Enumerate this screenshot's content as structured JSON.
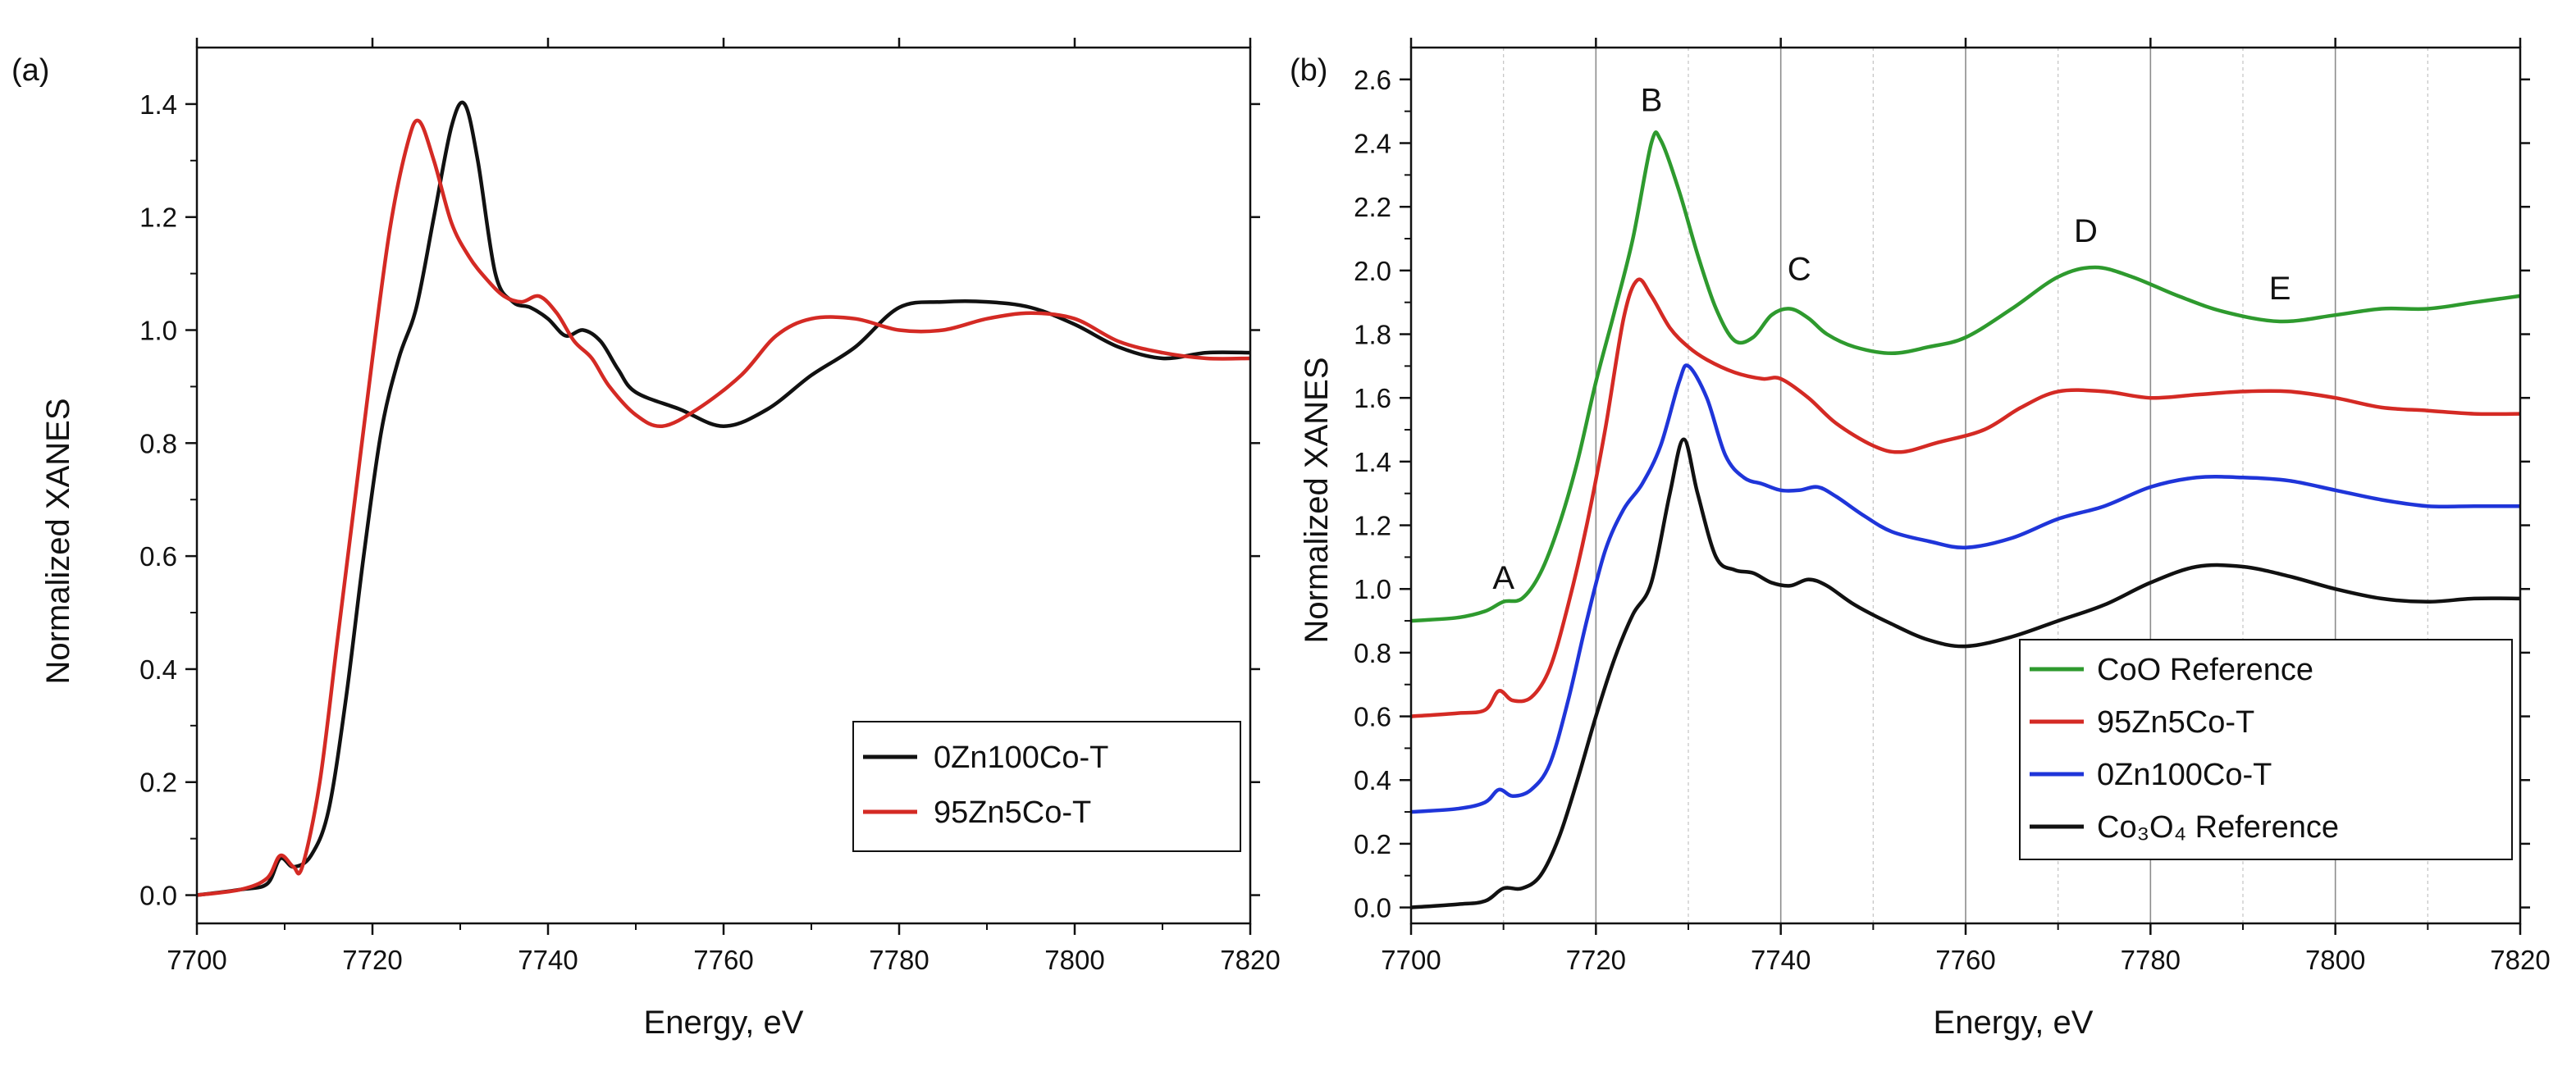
{
  "chart_data": [
    {
      "type": "line",
      "panel_label": "(a)",
      "title": "",
      "xlabel": "Energy, eV",
      "ylabel": "Normalized XANES",
      "xlim": [
        7700,
        7820
      ],
      "ylim": [
        -0.05,
        1.5
      ],
      "x_ticks": [
        7700,
        7720,
        7740,
        7760,
        7780,
        7800,
        7820
      ],
      "y_ticks": [
        0.0,
        0.2,
        0.4,
        0.6,
        0.8,
        1.0,
        1.2,
        1.4
      ],
      "x_tick_labels": [
        "7700",
        "7720",
        "7740",
        "7760",
        "7780",
        "7800",
        "7820"
      ],
      "y_tick_labels": [
        "0.0",
        "0.2",
        "0.4",
        "0.6",
        "0.8",
        "1.0",
        "1.2",
        "1.4"
      ],
      "grid": false,
      "legend_position": "bottom-right",
      "annotations": [],
      "series": [
        {
          "name": "0Zn100Co-T",
          "color": "#111111",
          "points": [
            [
              7700,
              0.0
            ],
            [
              7705,
              0.01
            ],
            [
              7708,
              0.02
            ],
            [
              7709.5,
              0.065
            ],
            [
              7711,
              0.05
            ],
            [
              7713,
              0.07
            ],
            [
              7715,
              0.15
            ],
            [
              7717,
              0.35
            ],
            [
              7719,
              0.6
            ],
            [
              7721,
              0.82
            ],
            [
              7723,
              0.95
            ],
            [
              7725,
              1.04
            ],
            [
              7727,
              1.2
            ],
            [
              7729,
              1.36
            ],
            [
              7730.5,
              1.4
            ],
            [
              7732,
              1.3
            ],
            [
              7734,
              1.1
            ],
            [
              7736,
              1.05
            ],
            [
              7738,
              1.04
            ],
            [
              7740,
              1.02
            ],
            [
              7742,
              0.99
            ],
            [
              7744,
              1.0
            ],
            [
              7746,
              0.98
            ],
            [
              7748,
              0.93
            ],
            [
              7750,
              0.89
            ],
            [
              7755,
              0.86
            ],
            [
              7760,
              0.83
            ],
            [
              7765,
              0.86
            ],
            [
              7770,
              0.92
            ],
            [
              7775,
              0.97
            ],
            [
              7780,
              1.04
            ],
            [
              7785,
              1.05
            ],
            [
              7790,
              1.05
            ],
            [
              7795,
              1.04
            ],
            [
              7800,
              1.01
            ],
            [
              7805,
              0.97
            ],
            [
              7810,
              0.95
            ],
            [
              7815,
              0.96
            ],
            [
              7820,
              0.96
            ]
          ]
        },
        {
          "name": "95Zn5Co-T",
          "color": "#d42a24",
          "points": [
            [
              7700,
              0.0
            ],
            [
              7705,
              0.01
            ],
            [
              7708,
              0.03
            ],
            [
              7709.5,
              0.07
            ],
            [
              7711,
              0.05
            ],
            [
              7712,
              0.05
            ],
            [
              7714,
              0.2
            ],
            [
              7716,
              0.45
            ],
            [
              7718,
              0.7
            ],
            [
              7720,
              0.95
            ],
            [
              7722,
              1.18
            ],
            [
              7724,
              1.33
            ],
            [
              7725.3,
              1.37
            ],
            [
              7727,
              1.3
            ],
            [
              7729,
              1.19
            ],
            [
              7731,
              1.13
            ],
            [
              7733,
              1.09
            ],
            [
              7735,
              1.06
            ],
            [
              7737,
              1.05
            ],
            [
              7739,
              1.06
            ],
            [
              7741,
              1.03
            ],
            [
              7743,
              0.98
            ],
            [
              7745,
              0.95
            ],
            [
              7747,
              0.9
            ],
            [
              7750,
              0.85
            ],
            [
              7753,
              0.83
            ],
            [
              7757,
              0.86
            ],
            [
              7762,
              0.92
            ],
            [
              7766,
              0.99
            ],
            [
              7770,
              1.02
            ],
            [
              7775,
              1.02
            ],
            [
              7780,
              1.0
            ],
            [
              7785,
              1.0
            ],
            [
              7790,
              1.02
            ],
            [
              7795,
              1.03
            ],
            [
              7800,
              1.02
            ],
            [
              7805,
              0.98
            ],
            [
              7810,
              0.96
            ],
            [
              7815,
              0.95
            ],
            [
              7820,
              0.95
            ]
          ]
        }
      ]
    },
    {
      "type": "line",
      "panel_label": "(b)",
      "title": "",
      "xlabel": "Energy, eV",
      "ylabel": "Normalized XANES",
      "xlim": [
        7700,
        7820
      ],
      "ylim": [
        -0.05,
        2.7
      ],
      "x_ticks": [
        7700,
        7720,
        7740,
        7760,
        7780,
        7800,
        7820
      ],
      "y_ticks": [
        0.0,
        0.2,
        0.4,
        0.6,
        0.8,
        1.0,
        1.2,
        1.4,
        1.6,
        1.8,
        2.0,
        2.2,
        2.4,
        2.6
      ],
      "x_tick_labels": [
        "7700",
        "7720",
        "7740",
        "7760",
        "7780",
        "7800",
        "7820"
      ],
      "y_tick_labels": [
        "0.0",
        "0.2",
        "0.4",
        "0.6",
        "0.8",
        "1.0",
        "1.2",
        "1.4",
        "1.6",
        "1.8",
        "2.0",
        "2.2",
        "2.4",
        "2.6"
      ],
      "grid": true,
      "grid_lines_x": [
        7710,
        7720,
        7730,
        7740,
        7750,
        7760,
        7770,
        7780,
        7790,
        7800,
        7810
      ],
      "legend_position": "bottom-right",
      "annotations": [
        {
          "text": "A",
          "x": 7710,
          "y": 1.0
        },
        {
          "text": "B",
          "x": 7726,
          "y": 2.5
        },
        {
          "text": "C",
          "x": 7742,
          "y": 1.97
        },
        {
          "text": "D",
          "x": 7773,
          "y": 2.09
        },
        {
          "text": "E",
          "x": 7794,
          "y": 1.91
        }
      ],
      "series": [
        {
          "name": "CoO Reference",
          "color": "#2e9a2e",
          "points": [
            [
              7700,
              0.9
            ],
            [
              7705,
              0.91
            ],
            [
              7708,
              0.93
            ],
            [
              7710,
              0.96
            ],
            [
              7712,
              0.97
            ],
            [
              7714,
              1.05
            ],
            [
              7716,
              1.2
            ],
            [
              7718,
              1.4
            ],
            [
              7720,
              1.65
            ],
            [
              7722,
              1.87
            ],
            [
              7724,
              2.1
            ],
            [
              7726,
              2.4
            ],
            [
              7727,
              2.41
            ],
            [
              7729,
              2.25
            ],
            [
              7731,
              2.05
            ],
            [
              7733,
              1.88
            ],
            [
              7735,
              1.78
            ],
            [
              7737,
              1.79
            ],
            [
              7739,
              1.86
            ],
            [
              7741,
              1.88
            ],
            [
              7743,
              1.85
            ],
            [
              7745,
              1.8
            ],
            [
              7748,
              1.76
            ],
            [
              7752,
              1.74
            ],
            [
              7756,
              1.76
            ],
            [
              7760,
              1.79
            ],
            [
              7765,
              1.88
            ],
            [
              7770,
              1.98
            ],
            [
              7774,
              2.01
            ],
            [
              7778,
              1.98
            ],
            [
              7783,
              1.92
            ],
            [
              7788,
              1.87
            ],
            [
              7794,
              1.84
            ],
            [
              7800,
              1.86
            ],
            [
              7805,
              1.88
            ],
            [
              7810,
              1.88
            ],
            [
              7815,
              1.9
            ],
            [
              7820,
              1.92
            ]
          ]
        },
        {
          "name": "95Zn5Co-T",
          "color": "#d42a24",
          "points": [
            [
              7700,
              0.6
            ],
            [
              7705,
              0.61
            ],
            [
              7708,
              0.62
            ],
            [
              7709.5,
              0.68
            ],
            [
              7711,
              0.65
            ],
            [
              7713,
              0.66
            ],
            [
              7715,
              0.75
            ],
            [
              7717,
              0.95
            ],
            [
              7719,
              1.2
            ],
            [
              7721,
              1.5
            ],
            [
              7723,
              1.85
            ],
            [
              7724.5,
              1.97
            ],
            [
              7726,
              1.92
            ],
            [
              7728,
              1.82
            ],
            [
              7730,
              1.76
            ],
            [
              7732,
              1.72
            ],
            [
              7735,
              1.68
            ],
            [
              7738,
              1.66
            ],
            [
              7740,
              1.66
            ],
            [
              7743,
              1.6
            ],
            [
              7746,
              1.52
            ],
            [
              7750,
              1.45
            ],
            [
              7753,
              1.43
            ],
            [
              7757,
              1.46
            ],
            [
              7762,
              1.5
            ],
            [
              7766,
              1.57
            ],
            [
              7770,
              1.62
            ],
            [
              7775,
              1.62
            ],
            [
              7780,
              1.6
            ],
            [
              7785,
              1.61
            ],
            [
              7790,
              1.62
            ],
            [
              7795,
              1.62
            ],
            [
              7800,
              1.6
            ],
            [
              7805,
              1.57
            ],
            [
              7810,
              1.56
            ],
            [
              7815,
              1.55
            ],
            [
              7820,
              1.55
            ]
          ]
        },
        {
          "name": "0Zn100Co-T",
          "color": "#1f35d9",
          "points": [
            [
              7700,
              0.3
            ],
            [
              7705,
              0.31
            ],
            [
              7708,
              0.33
            ],
            [
              7709.5,
              0.37
            ],
            [
              7711,
              0.35
            ],
            [
              7713,
              0.37
            ],
            [
              7715,
              0.45
            ],
            [
              7717,
              0.65
            ],
            [
              7719,
              0.9
            ],
            [
              7721,
              1.12
            ],
            [
              7723,
              1.25
            ],
            [
              7725,
              1.33
            ],
            [
              7727,
              1.45
            ],
            [
              7729,
              1.65
            ],
            [
              7730,
              1.7
            ],
            [
              7732,
              1.6
            ],
            [
              7734,
              1.42
            ],
            [
              7736,
              1.35
            ],
            [
              7738,
              1.33
            ],
            [
              7740,
              1.31
            ],
            [
              7742,
              1.31
            ],
            [
              7744,
              1.32
            ],
            [
              7746,
              1.29
            ],
            [
              7749,
              1.23
            ],
            [
              7752,
              1.18
            ],
            [
              7756,
              1.15
            ],
            [
              7760,
              1.13
            ],
            [
              7765,
              1.16
            ],
            [
              7770,
              1.22
            ],
            [
              7775,
              1.26
            ],
            [
              7780,
              1.32
            ],
            [
              7785,
              1.35
            ],
            [
              7790,
              1.35
            ],
            [
              7795,
              1.34
            ],
            [
              7800,
              1.31
            ],
            [
              7805,
              1.28
            ],
            [
              7810,
              1.26
            ],
            [
              7815,
              1.26
            ],
            [
              7820,
              1.26
            ]
          ]
        },
        {
          "name": "Co₃O₄ Reference",
          "color": "#111111",
          "points": [
            [
              7700,
              0.0
            ],
            [
              7705,
              0.01
            ],
            [
              7708,
              0.02
            ],
            [
              7710,
              0.06
            ],
            [
              7712,
              0.06
            ],
            [
              7714,
              0.1
            ],
            [
              7716,
              0.22
            ],
            [
              7718,
              0.4
            ],
            [
              7720,
              0.6
            ],
            [
              7722,
              0.78
            ],
            [
              7724,
              0.92
            ],
            [
              7726,
              1.02
            ],
            [
              7728,
              1.3
            ],
            [
              7729.5,
              1.47
            ],
            [
              7731,
              1.3
            ],
            [
              7733,
              1.1
            ],
            [
              7735,
              1.06
            ],
            [
              7737,
              1.05
            ],
            [
              7739,
              1.02
            ],
            [
              7741,
              1.01
            ],
            [
              7743,
              1.03
            ],
            [
              7745,
              1.01
            ],
            [
              7748,
              0.95
            ],
            [
              7752,
              0.89
            ],
            [
              7756,
              0.84
            ],
            [
              7760,
              0.82
            ],
            [
              7765,
              0.85
            ],
            [
              7770,
              0.9
            ],
            [
              7775,
              0.95
            ],
            [
              7780,
              1.02
            ],
            [
              7785,
              1.07
            ],
            [
              7790,
              1.07
            ],
            [
              7795,
              1.04
            ],
            [
              7800,
              1.0
            ],
            [
              7805,
              0.97
            ],
            [
              7810,
              0.96
            ],
            [
              7815,
              0.97
            ],
            [
              7820,
              0.97
            ]
          ]
        }
      ]
    }
  ]
}
